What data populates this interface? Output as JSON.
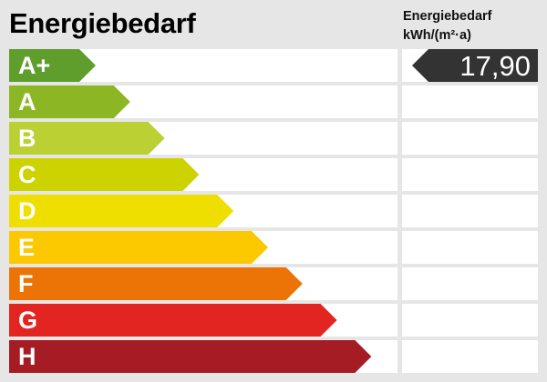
{
  "title": "Energiebedarf",
  "value_header": {
    "line1": "Energiebedarf",
    "line2": "kWh/(m²·a)"
  },
  "classes": [
    {
      "label": "A+",
      "color": "#5f9e2c"
    },
    {
      "label": "A",
      "color": "#8cb624"
    },
    {
      "label": "B",
      "color": "#bad033"
    },
    {
      "label": "C",
      "color": "#ccd300"
    },
    {
      "label": "D",
      "color": "#efdf00"
    },
    {
      "label": "E",
      "color": "#fcc800"
    },
    {
      "label": "F",
      "color": "#ec7406"
    },
    {
      "label": "G",
      "color": "#e32522"
    },
    {
      "label": "H",
      "color": "#a51c24"
    }
  ],
  "indicator": {
    "value": "17,90",
    "class": "A+",
    "color": "#333333"
  }
}
